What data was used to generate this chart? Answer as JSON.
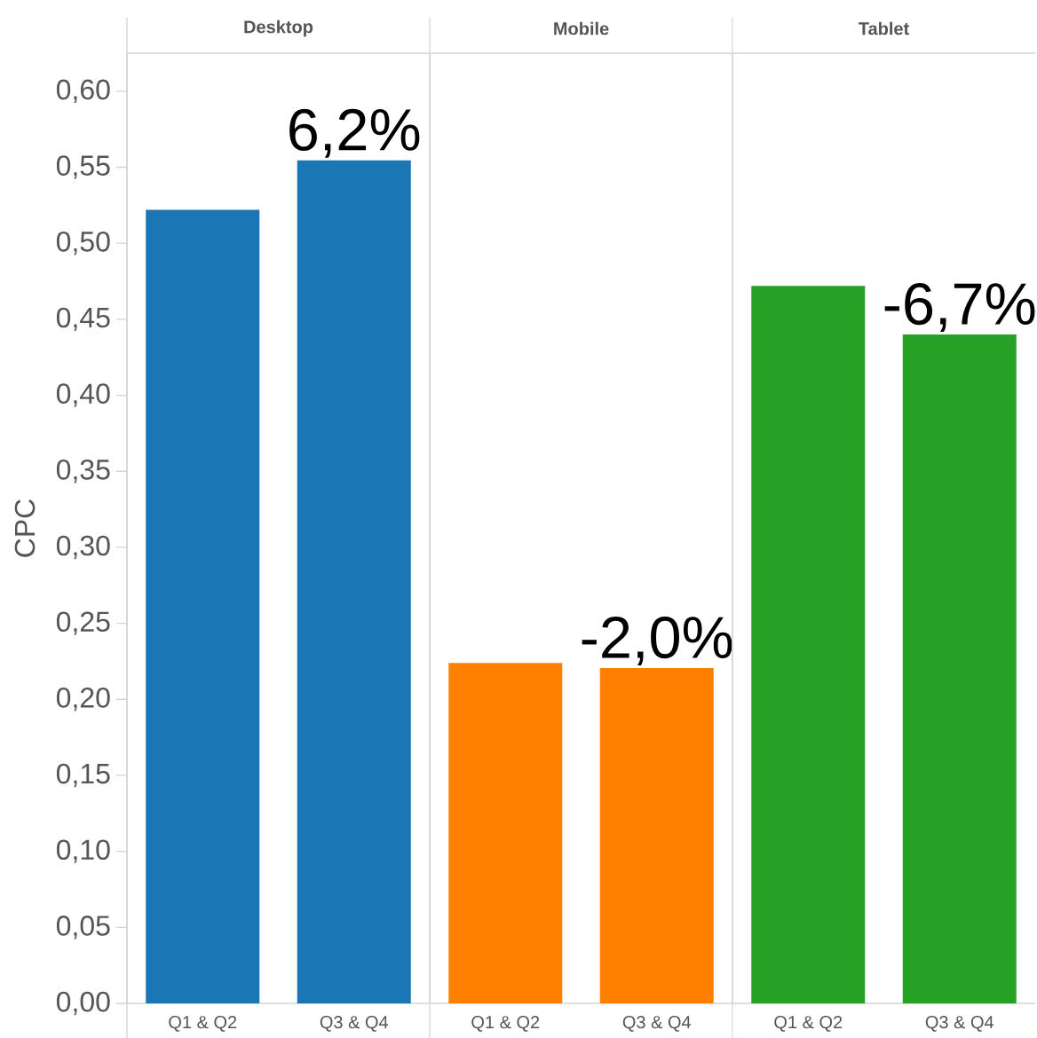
{
  "chart_data": [
    {
      "type": "bar",
      "title": "Desktop",
      "ylabel": "CPC",
      "categories": [
        "Q1 & Q2",
        "Q3 & Q4"
      ],
      "values": [
        0.522,
        0.5545
      ],
      "color": "#1a76b4",
      "annotations": [
        {
          "text": "6,2%",
          "x": "Q3 & Q4",
          "y": 0.5545
        }
      ],
      "ylim": [
        0,
        0.625
      ],
      "yticks": [
        {
          "value": 0,
          "label": "0,00"
        },
        {
          "value": 0.05,
          "label": "0,05"
        },
        {
          "value": 0.1,
          "label": "0,10"
        },
        {
          "value": 0.15,
          "label": "0,15"
        },
        {
          "value": 0.2,
          "label": "0,20"
        },
        {
          "value": 0.25,
          "label": "0,25"
        },
        {
          "value": 0.3,
          "label": "0,30"
        },
        {
          "value": 0.35,
          "label": "0,35"
        },
        {
          "value": 0.4,
          "label": "0,40"
        },
        {
          "value": 0.45,
          "label": "0,45"
        },
        {
          "value": 0.5,
          "label": "0,50"
        },
        {
          "value": 0.55,
          "label": "0,55"
        },
        {
          "value": 0.6,
          "label": "0,60"
        }
      ]
    },
    {
      "type": "bar",
      "title": "Mobile",
      "categories": [
        "Q1 & Q2",
        "Q3 & Q4"
      ],
      "values": [
        0.224,
        0.2206
      ],
      "color": "#ff7f00",
      "annotations": [
        {
          "text": "-2,0%",
          "x": "Q3 & Q4",
          "y": 0.2206
        }
      ],
      "ylim": [
        0,
        0.625
      ],
      "tick_labels": "x"
    },
    {
      "type": "bar",
      "title": "Tablet",
      "categories": [
        "Q1 & Q2",
        "Q3 & Q4"
      ],
      "values": [
        0.472,
        0.44
      ],
      "color": "#26a025",
      "annotations": [
        {
          "text": "-6,7%",
          "x": "Q3 & Q4",
          "y": 0.44
        }
      ],
      "ylim": [
        0,
        0.625
      ],
      "tick_labels": "x"
    }
  ]
}
